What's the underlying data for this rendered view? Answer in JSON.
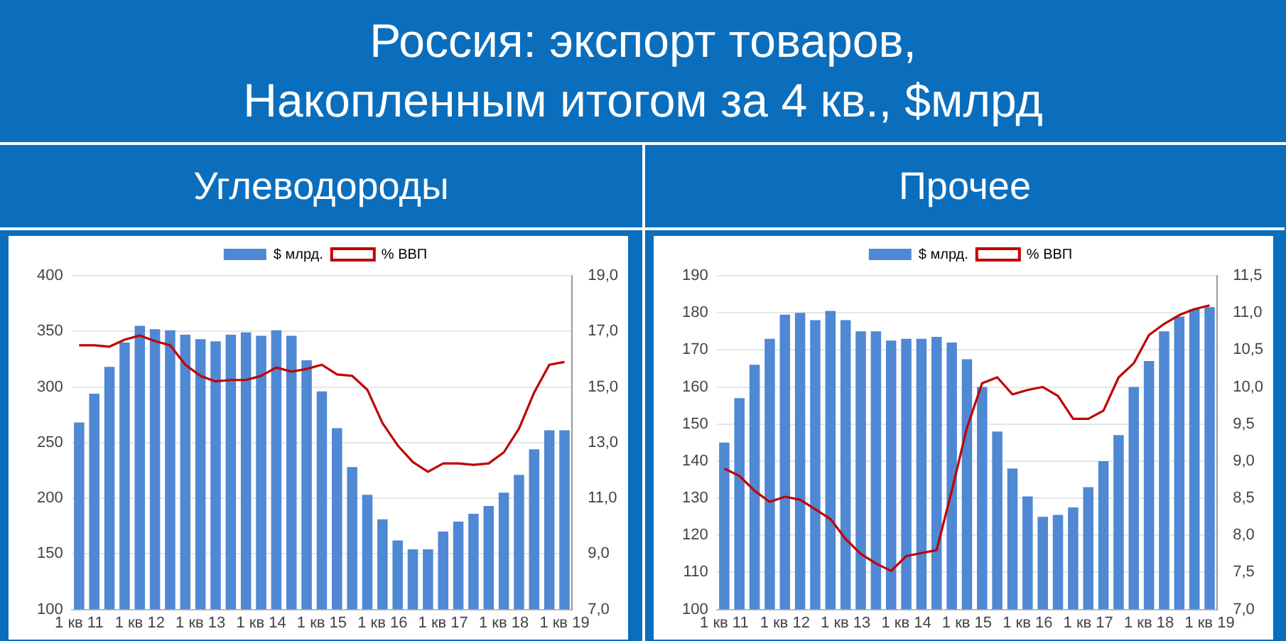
{
  "chart_data": [
    {
      "type": "bar",
      "title": "Россия: экспорт товаров,\nНакопленным итогом за 4 кв., $млрд",
      "subtitle": "Углеводороды",
      "categories": [
        "1 кв 11",
        null,
        null,
        null,
        "1 кв 12",
        null,
        null,
        null,
        "1 кв 13",
        null,
        null,
        null,
        "1 кв 14",
        null,
        null,
        null,
        "1 кв 15",
        null,
        null,
        null,
        "1 кв 16",
        null,
        null,
        null,
        "1 кв 17",
        null,
        null,
        null,
        "1 кв 18",
        null,
        null,
        null,
        "1 кв 19"
      ],
      "series": [
        {
          "name": "$ млрд.",
          "color": "#4f88d3",
          "values": [
            268,
            294,
            318,
            340,
            355,
            352,
            351,
            347,
            343,
            341,
            347,
            349,
            346,
            351,
            346,
            324,
            296,
            263,
            228,
            203,
            181,
            162,
            154,
            154,
            170,
            179,
            186,
            193,
            205,
            221,
            244,
            261,
            261
          ]
        },
        {
          "name": "% ВВП",
          "type": "line",
          "axis": "y2",
          "color": "#c00000",
          "values": [
            16.5,
            16.5,
            16.45,
            16.7,
            16.85,
            16.65,
            16.5,
            15.8,
            15.4,
            15.2,
            15.25,
            15.25,
            15.4,
            15.7,
            15.55,
            15.65,
            15.8,
            15.45,
            15.4,
            14.9,
            13.7,
            12.9,
            12.3,
            11.95,
            12.25,
            12.25,
            12.2,
            12.25,
            12.65,
            13.5,
            14.8,
            15.8,
            15.9
          ]
        }
      ],
      "ylim": [
        100,
        400
      ],
      "yticks": [
        100,
        150,
        200,
        250,
        300,
        350,
        400
      ],
      "y2lim": [
        7,
        19
      ],
      "y2ticks": [
        {
          "value": 7,
          "label": "7,0"
        },
        {
          "value": 9,
          "label": "9,0"
        },
        {
          "value": 11,
          "label": "11,0"
        },
        {
          "value": 13,
          "label": "13,0"
        },
        {
          "value": 15,
          "label": "15,0"
        },
        {
          "value": 17,
          "label": "17,0"
        },
        {
          "value": 19,
          "label": "19,0"
        }
      ],
      "grid": "y",
      "legend": "top",
      "marker": "none"
    },
    {
      "type": "bar",
      "subtitle": "Прочее",
      "categories": [
        "1 кв 11",
        null,
        null,
        null,
        "1 кв 12",
        null,
        null,
        null,
        "1 кв 13",
        null,
        null,
        null,
        "1 кв 14",
        null,
        null,
        null,
        "1 кв 15",
        null,
        null,
        null,
        "1 кв 16",
        null,
        null,
        null,
        "1 кв 17",
        null,
        null,
        null,
        "1 кв 18",
        null,
        null,
        null,
        "1 кв 19"
      ],
      "series": [
        {
          "name": "$ млрд.",
          "color": "#4f88d3",
          "values": [
            145,
            157,
            166,
            173,
            179.5,
            180,
            178,
            180.5,
            178,
            175,
            175,
            172.5,
            173,
            173,
            173.5,
            172,
            167.5,
            160,
            148,
            138,
            130.5,
            125,
            125.5,
            127.5,
            133,
            140,
            147,
            160,
            167,
            175,
            179,
            181,
            181.5
          ]
        },
        {
          "name": "% ВВП",
          "type": "line",
          "axis": "y2",
          "color": "#c00000",
          "values": [
            8.9,
            8.8,
            8.6,
            8.45,
            8.52,
            8.48,
            8.35,
            8.22,
            7.95,
            7.75,
            7.62,
            7.52,
            7.72,
            7.76,
            7.8,
            8.6,
            9.45,
            10.05,
            10.13,
            9.9,
            9.96,
            10.0,
            9.88,
            9.57,
            9.57,
            9.68,
            10.13,
            10.32,
            10.7,
            10.85,
            10.97,
            11.05,
            11.1
          ]
        }
      ],
      "ylim": [
        100,
        190
      ],
      "yticks": [
        100,
        110,
        120,
        130,
        140,
        150,
        160,
        170,
        180,
        190
      ],
      "y2lim": [
        7,
        11.5
      ],
      "y2ticks": [
        {
          "value": 7,
          "label": "7,0"
        },
        {
          "value": 7.5,
          "label": "7,5"
        },
        {
          "value": 8,
          "label": "8,0"
        },
        {
          "value": 8.5,
          "label": "8,5"
        },
        {
          "value": 9,
          "label": "9,0"
        },
        {
          "value": 9.5,
          "label": "9,5"
        },
        {
          "value": 10,
          "label": "10,0"
        },
        {
          "value": 10.5,
          "label": "10,5"
        },
        {
          "value": 11,
          "label": "11,0"
        },
        {
          "value": 11.5,
          "label": "11,5"
        }
      ],
      "grid": "y",
      "legend": "top",
      "marker": "none"
    }
  ]
}
